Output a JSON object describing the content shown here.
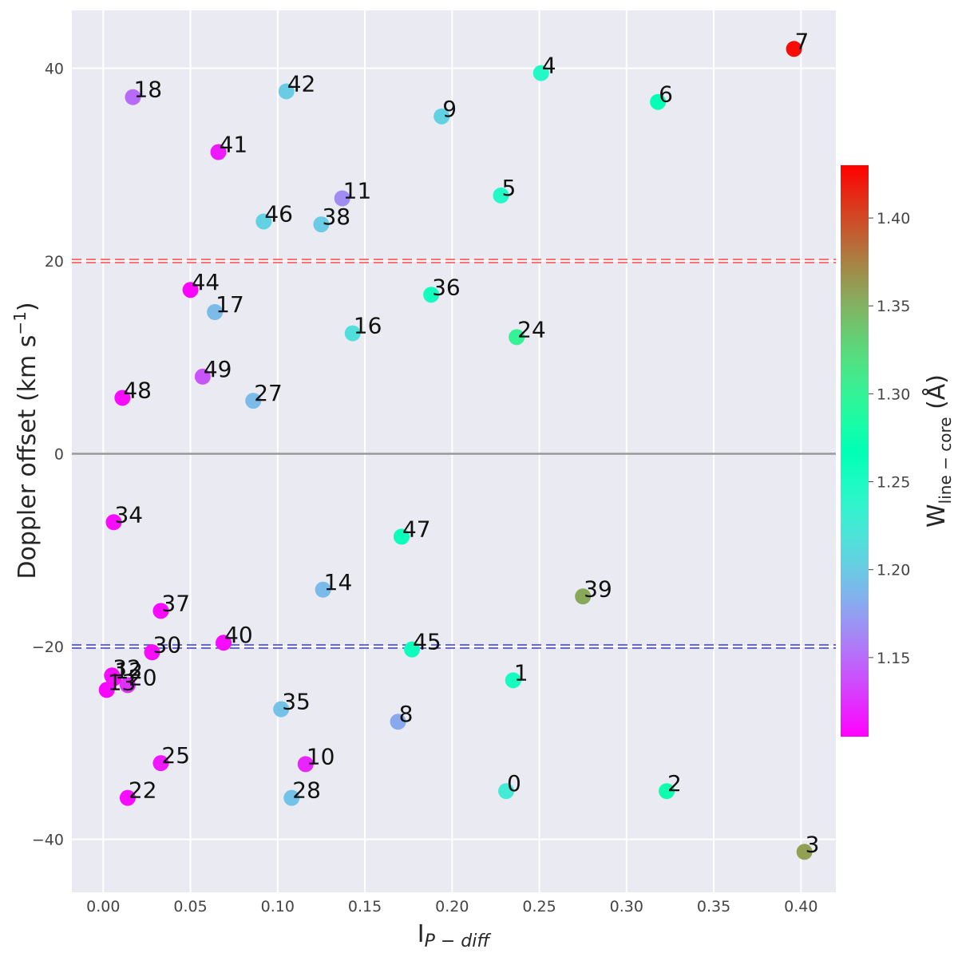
{
  "chart_data": {
    "type": "scatter",
    "xlabel": "I",
    "xlabel_sub": "P − diff",
    "ylabel": "Doppler offset (km s",
    "ylabel_sup": "−1",
    "ylabel_end": ")",
    "xlim": [
      -0.018,
      0.42
    ],
    "ylim": [
      -45.5,
      46
    ],
    "x_ticks": [
      0.0,
      0.05,
      0.1,
      0.15,
      0.2,
      0.25,
      0.3,
      0.35,
      0.4
    ],
    "x_tick_labels": [
      "0.00",
      "0.05",
      "0.10",
      "0.15",
      "0.20",
      "0.25",
      "0.30",
      "0.35",
      "0.40"
    ],
    "y_ticks": [
      -40,
      -20,
      0,
      20,
      40
    ],
    "y_tick_labels": [
      "−40",
      "−20",
      "0",
      "20",
      "40"
    ],
    "grid": true,
    "reference_lines": [
      {
        "y": 0,
        "color": "#9a9a9a",
        "style": "solid"
      },
      {
        "y": 20,
        "color": "#ff4a4a",
        "style": "dashed"
      },
      {
        "y": -20,
        "color": "#3a3ae8",
        "style": "dashed"
      }
    ],
    "colorbar": {
      "label": "W",
      "label_sub": "line − core",
      "label_end": " (Å)",
      "range": [
        1.105,
        1.43
      ],
      "ticks": [
        1.15,
        1.2,
        1.25,
        1.3,
        1.35,
        1.4
      ],
      "tick_labels": [
        "1.15",
        "1.20",
        "1.25",
        "1.30",
        "1.35",
        "1.40"
      ],
      "colormap": "rainbow"
    },
    "points": [
      {
        "label": "0",
        "x": 0.231,
        "y": -35.0,
        "c": 1.225
      },
      {
        "label": "1",
        "x": 0.235,
        "y": -23.5,
        "c": 1.255
      },
      {
        "label": "2",
        "x": 0.323,
        "y": -35.0,
        "c": 1.275
      },
      {
        "label": "3",
        "x": 0.402,
        "y": -41.3,
        "c": 1.36
      },
      {
        "label": "4",
        "x": 0.251,
        "y": 39.5,
        "c": 1.245
      },
      {
        "label": "5",
        "x": 0.228,
        "y": 26.8,
        "c": 1.245
      },
      {
        "label": "6",
        "x": 0.318,
        "y": 36.5,
        "c": 1.265
      },
      {
        "label": "7",
        "x": 0.396,
        "y": 42.0,
        "c": 1.425
      },
      {
        "label": "8",
        "x": 0.169,
        "y": -27.8,
        "c": 1.18
      },
      {
        "label": "9",
        "x": 0.194,
        "y": 35.0,
        "c": 1.205
      },
      {
        "label": "10",
        "x": 0.116,
        "y": -32.2,
        "c": 1.12
      },
      {
        "label": "11",
        "x": 0.137,
        "y": 26.5,
        "c": 1.165
      },
      {
        "label": "12",
        "x": 0.006,
        "y": -23.3,
        "c": 1.11
      },
      {
        "label": "13",
        "x": 0.002,
        "y": -24.5,
        "c": 1.108
      },
      {
        "label": "14",
        "x": 0.126,
        "y": -14.1,
        "c": 1.19
      },
      {
        "label": "16",
        "x": 0.143,
        "y": 12.5,
        "c": 1.215
      },
      {
        "label": "17",
        "x": 0.064,
        "y": 14.7,
        "c": 1.19
      },
      {
        "label": "18",
        "x": 0.017,
        "y": 37.0,
        "c": 1.15
      },
      {
        "label": "20",
        "x": 0.014,
        "y": -24.0,
        "c": 1.125
      },
      {
        "label": "22",
        "x": 0.014,
        "y": -35.7,
        "c": 1.11
      },
      {
        "label": "24",
        "x": 0.237,
        "y": 12.1,
        "c": 1.3
      },
      {
        "label": "25",
        "x": 0.033,
        "y": -32.1,
        "c": 1.115
      },
      {
        "label": "27",
        "x": 0.086,
        "y": 5.5,
        "c": 1.19
      },
      {
        "label": "28",
        "x": 0.108,
        "y": -35.7,
        "c": 1.195
      },
      {
        "label": "30",
        "x": 0.028,
        "y": -20.6,
        "c": 1.11
      },
      {
        "label": "32",
        "x": 0.005,
        "y": -23.0,
        "c": 1.11
      },
      {
        "label": "34",
        "x": 0.006,
        "y": -7.1,
        "c": 1.11
      },
      {
        "label": "35",
        "x": 0.102,
        "y": -26.5,
        "c": 1.195
      },
      {
        "label": "36",
        "x": 0.188,
        "y": 16.5,
        "c": 1.255
      },
      {
        "label": "37",
        "x": 0.033,
        "y": -16.3,
        "c": 1.11
      },
      {
        "label": "38",
        "x": 0.125,
        "y": 23.8,
        "c": 1.2
      },
      {
        "label": "39",
        "x": 0.275,
        "y": -14.8,
        "c": 1.355
      },
      {
        "label": "40",
        "x": 0.069,
        "y": -19.6,
        "c": 1.11
      },
      {
        "label": "41",
        "x": 0.066,
        "y": 31.3,
        "c": 1.115
      },
      {
        "label": "42",
        "x": 0.105,
        "y": 37.6,
        "c": 1.2
      },
      {
        "label": "44",
        "x": 0.05,
        "y": 17.0,
        "c": 1.107
      },
      {
        "label": "45",
        "x": 0.177,
        "y": -20.3,
        "c": 1.26
      },
      {
        "label": "46",
        "x": 0.092,
        "y": 24.1,
        "c": 1.205
      },
      {
        "label": "47",
        "x": 0.171,
        "y": -8.6,
        "c": 1.26
      },
      {
        "label": "48",
        "x": 0.011,
        "y": 5.8,
        "c": 1.11
      },
      {
        "label": "49",
        "x": 0.057,
        "y": 8.0,
        "c": 1.14
      }
    ]
  }
}
